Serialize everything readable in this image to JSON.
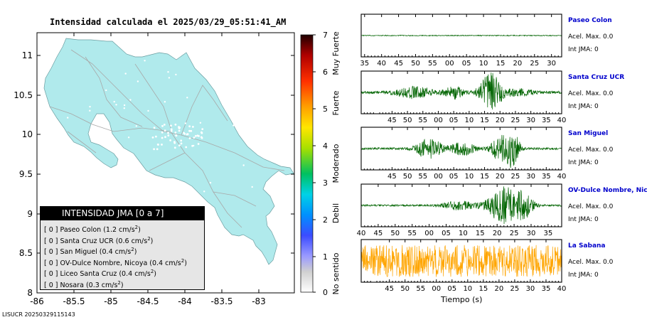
{
  "map": {
    "title": "Intensidad calculada el 2025/03/29_05:51:41_AM",
    "x_ticks": [
      "-86",
      "-85.5",
      "-85",
      "-84.5",
      "-84",
      "-83.5",
      "-83"
    ],
    "y_ticks": [
      "11",
      "10.5",
      "10",
      "9.5",
      "9",
      "8.5",
      "8"
    ],
    "land_color": "#b0eaec",
    "sea_color": "#ffffff"
  },
  "colorbar": {
    "ticks": [
      "0",
      "1",
      "2",
      "3",
      "4",
      "5",
      "6",
      "7"
    ],
    "labels": [
      "No sentido",
      "Debil",
      "Moderado",
      "Fuerte",
      "Muy Fuerte"
    ]
  },
  "legend": {
    "header": "INTENSIDAD JMA [0 a 7]",
    "items": [
      {
        "int": "[ 0 ]",
        "name": "Paseo Colon",
        "value": "(1.2 cm/s",
        "sup": "2",
        "close": ")"
      },
      {
        "int": "[ 0 ]",
        "name": "Santa Cruz UCR",
        "value": "(0.6 cm/s",
        "sup": "2",
        "close": ")"
      },
      {
        "int": "[ 0 ]",
        "name": "San Miguel",
        "value": "(0.4 cm/s",
        "sup": "2",
        "close": ")"
      },
      {
        "int": "[ 0 ]",
        "name": "OV-Dulce Nombre, Nicoya",
        "value": "(0.4 cm/s",
        "sup": "2",
        "close": ")"
      },
      {
        "int": "[ 0 ]",
        "name": "Liceo Santa Cruz",
        "value": "(0.4 cm/s",
        "sup": "2",
        "close": ")"
      },
      {
        "int": "[ 0 ]",
        "name": "Nosara",
        "value": "(0.3 cm/s",
        "sup": "2",
        "close": ")"
      }
    ]
  },
  "footer_id": "LISUCR 20250329115143",
  "chart_data": {
    "type": "line",
    "xlabel": "Tiempo (s)",
    "panels": [
      {
        "station": "Paseo Colon",
        "accel": "Acel. Max. 0.0",
        "jma": "Int JMA: 0",
        "color": "#006400",
        "ticks": [
          "35",
          "40",
          "45",
          "50",
          "55",
          "00",
          "05",
          "10",
          "15",
          "20",
          "25",
          "30"
        ],
        "tick_start": 35,
        "tick_end": 90,
        "range": [
          34,
          93
        ],
        "bursts": [
          [
            5.5,
            0.85,
            2.2
          ],
          [
            15,
            0.2,
            2.5
          ]
        ],
        "noise": 0.02
      },
      {
        "station": "Santa Cruz UCR",
        "accel": "Acel. Max. 0.0",
        "jma": "Int JMA: 0",
        "color": "#006400",
        "ticks": [
          "45",
          "50",
          "55",
          "00",
          "05",
          "10",
          "15",
          "20",
          "25",
          "30",
          "35",
          "40"
        ],
        "tick_start": 45,
        "tick_end": 100,
        "range": [
          35,
          100
        ],
        "bursts": [
          [
            52,
            0.25,
            6
          ],
          [
            65,
            0.3,
            3
          ],
          [
            77,
            0.9,
            3.5
          ],
          [
            86,
            0.15,
            5
          ]
        ],
        "noise": 0.06
      },
      {
        "station": "San Miguel",
        "accel": "Acel. Max. 0.0",
        "jma": "Int JMA: 0",
        "color": "#006400",
        "ticks": [
          "45",
          "50",
          "55",
          "00",
          "05",
          "10",
          "15",
          "20",
          "25",
          "30",
          "35",
          "40"
        ],
        "tick_start": 45,
        "tick_end": 100,
        "range": [
          35,
          100
        ],
        "bursts": [
          [
            57,
            0.5,
            4
          ],
          [
            68,
            0.3,
            4
          ],
          [
            80,
            0.55,
            3
          ],
          [
            84,
            0.95,
            2.2
          ]
        ],
        "noise": 0.05
      },
      {
        "station": "OV-Dulce Nombre, Nicoya",
        "accel": "Acel. Max. 0.0",
        "jma": "Int JMA: 0",
        "color": "#006400",
        "ticks": [
          "40",
          "45",
          "50",
          "55",
          "00",
          "05",
          "10",
          "15",
          "20",
          "25",
          "30",
          "35"
        ],
        "tick_start": 40,
        "tick_end": 95,
        "range": [
          40,
          99
        ],
        "bursts": [
          [
            69,
            0.2,
            5
          ],
          [
            82,
            0.85,
            4.5
          ],
          [
            88,
            0.5,
            3
          ]
        ],
        "noise": 0.04
      },
      {
        "station": "La Sabana",
        "accel": "Acel. Max. 0.0",
        "jma": "Int JMA: 0",
        "color": "#ffa500",
        "ticks": [
          "45",
          "50",
          "55",
          "00",
          "05",
          "10",
          "15",
          "20",
          "25",
          "30",
          "35",
          "40"
        ],
        "tick_start": 45,
        "tick_end": 100,
        "range": [
          36,
          100
        ],
        "bursts": [],
        "noise": 0.75
      }
    ]
  }
}
